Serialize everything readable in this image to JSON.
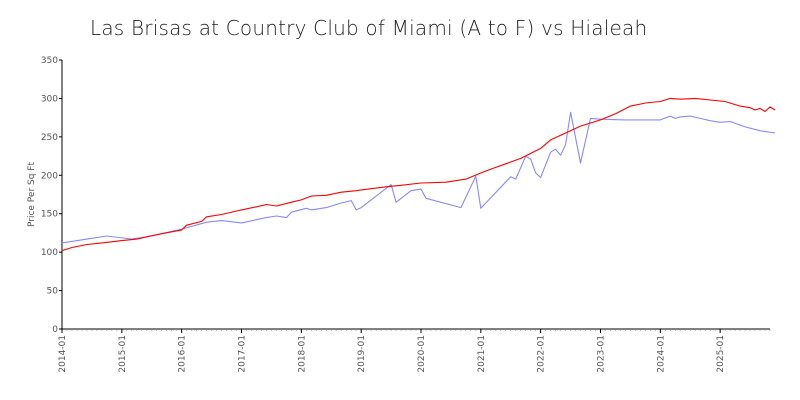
{
  "chart_data": {
    "type": "line",
    "title": "Las Brisas at Country Club of Miami (A to F) vs Hialeah",
    "xlabel": "",
    "ylabel": "Price Per Sq Ft",
    "ylim": [
      0,
      350
    ],
    "yticks": [
      "0",
      "50",
      "100",
      "150",
      "200",
      "250",
      "300",
      "350"
    ],
    "xlim": [
      "2014-01",
      "2025-11"
    ],
    "xticks": [
      "2014-01",
      "2015-01",
      "2016-01",
      "2017-01",
      "2018-01",
      "2019-01",
      "2020-01",
      "2021-01",
      "2022-01",
      "2023-01",
      "2024-01",
      "2025-01"
    ],
    "grid": false,
    "legend": "none",
    "series": [
      {
        "name": "Hialeah",
        "color": "#ff0000",
        "points": [
          [
            "2014-01",
            102
          ],
          [
            "2014-03",
            106
          ],
          [
            "2014-06",
            110
          ],
          [
            "2014-09",
            112
          ],
          [
            "2015-01",
            115
          ],
          [
            "2015-04",
            117
          ],
          [
            "2015-06",
            120
          ],
          [
            "2015-09",
            124
          ],
          [
            "2016-01",
            129
          ],
          [
            "2016-02",
            135
          ],
          [
            "2016-05",
            140
          ],
          [
            "2016-06",
            146
          ],
          [
            "2016-09",
            149
          ],
          [
            "2017-01",
            155
          ],
          [
            "2017-04",
            159
          ],
          [
            "2017-06",
            162
          ],
          [
            "2017-08",
            160
          ],
          [
            "2017-11",
            165
          ],
          [
            "2018-01",
            168
          ],
          [
            "2018-03",
            173
          ],
          [
            "2018-06",
            174
          ],
          [
            "2018-09",
            178
          ],
          [
            "2018-12",
            180
          ],
          [
            "2019-01",
            181
          ],
          [
            "2019-06",
            185
          ],
          [
            "2019-09",
            187
          ],
          [
            "2020-01",
            190
          ],
          [
            "2020-06",
            191
          ],
          [
            "2020-10",
            195
          ],
          [
            "2021-01",
            203
          ],
          [
            "2021-03",
            208
          ],
          [
            "2021-06",
            215
          ],
          [
            "2021-09",
            222
          ],
          [
            "2022-01",
            235
          ],
          [
            "2022-03",
            246
          ],
          [
            "2022-06",
            255
          ],
          [
            "2022-09",
            264
          ],
          [
            "2023-01",
            272
          ],
          [
            "2023-04",
            280
          ],
          [
            "2023-07",
            290
          ],
          [
            "2023-10",
            294
          ],
          [
            "2024-01",
            296
          ],
          [
            "2024-03",
            300
          ],
          [
            "2024-05",
            299
          ],
          [
            "2024-08",
            300
          ],
          [
            "2024-11",
            298
          ],
          [
            "2025-02",
            296
          ],
          [
            "2025-05",
            290
          ],
          [
            "2025-07",
            288
          ],
          [
            "2025-08",
            285
          ],
          [
            "2025-09",
            287
          ],
          [
            "2025-10",
            283
          ],
          [
            "2025-11",
            289
          ],
          [
            "2025-12",
            285
          ]
        ]
      },
      {
        "name": "Las Brisas at Country Club of Miami (A to F)",
        "color": "#8888ff",
        "points": [
          [
            "2014-01",
            112
          ],
          [
            "2014-06",
            117
          ],
          [
            "2014-10",
            121
          ],
          [
            "2015-03",
            117
          ],
          [
            "2015-06",
            120
          ],
          [
            "2015-09",
            124
          ],
          [
            "2016-01",
            130
          ],
          [
            "2016-06",
            139
          ],
          [
            "2016-09",
            141
          ],
          [
            "2017-01",
            138
          ],
          [
            "2017-06",
            145
          ],
          [
            "2017-08",
            147
          ],
          [
            "2017-10",
            145
          ],
          [
            "2017-11",
            152
          ],
          [
            "2018-02",
            157
          ],
          [
            "2018-03",
            155
          ],
          [
            "2018-06",
            158
          ],
          [
            "2018-09",
            164
          ],
          [
            "2018-11",
            167
          ],
          [
            "2018-12",
            155
          ],
          [
            "2019-01",
            158
          ],
          [
            "2019-07",
            188
          ],
          [
            "2019-08",
            165
          ],
          [
            "2019-11",
            180
          ],
          [
            "2020-01",
            182
          ],
          [
            "2020-02",
            170
          ],
          [
            "2020-09",
            158
          ],
          [
            "2020-12",
            199
          ],
          [
            "2021-01",
            157
          ],
          [
            "2021-07",
            198
          ],
          [
            "2021-08",
            195
          ],
          [
            "2021-10",
            225
          ],
          [
            "2021-11",
            221
          ],
          [
            "2021-12",
            203
          ],
          [
            "2022-01",
            197
          ],
          [
            "2022-03",
            230
          ],
          [
            "2022-04",
            234
          ],
          [
            "2022-05",
            226
          ],
          [
            "2022-06",
            240
          ],
          [
            "2022-07",
            282
          ],
          [
            "2022-09",
            216
          ],
          [
            "2022-11",
            274
          ],
          [
            "2023-01",
            273
          ],
          [
            "2023-06",
            272
          ],
          [
            "2023-10",
            272
          ],
          [
            "2024-01",
            272
          ],
          [
            "2024-03",
            277
          ],
          [
            "2024-04",
            274
          ],
          [
            "2024-05",
            276
          ],
          [
            "2024-07",
            277
          ],
          [
            "2024-09",
            274
          ],
          [
            "2024-11",
            271
          ],
          [
            "2025-01",
            269
          ],
          [
            "2025-03",
            270
          ],
          [
            "2025-06",
            263
          ],
          [
            "2025-09",
            258
          ],
          [
            "2025-12",
            255
          ]
        ]
      }
    ]
  }
}
